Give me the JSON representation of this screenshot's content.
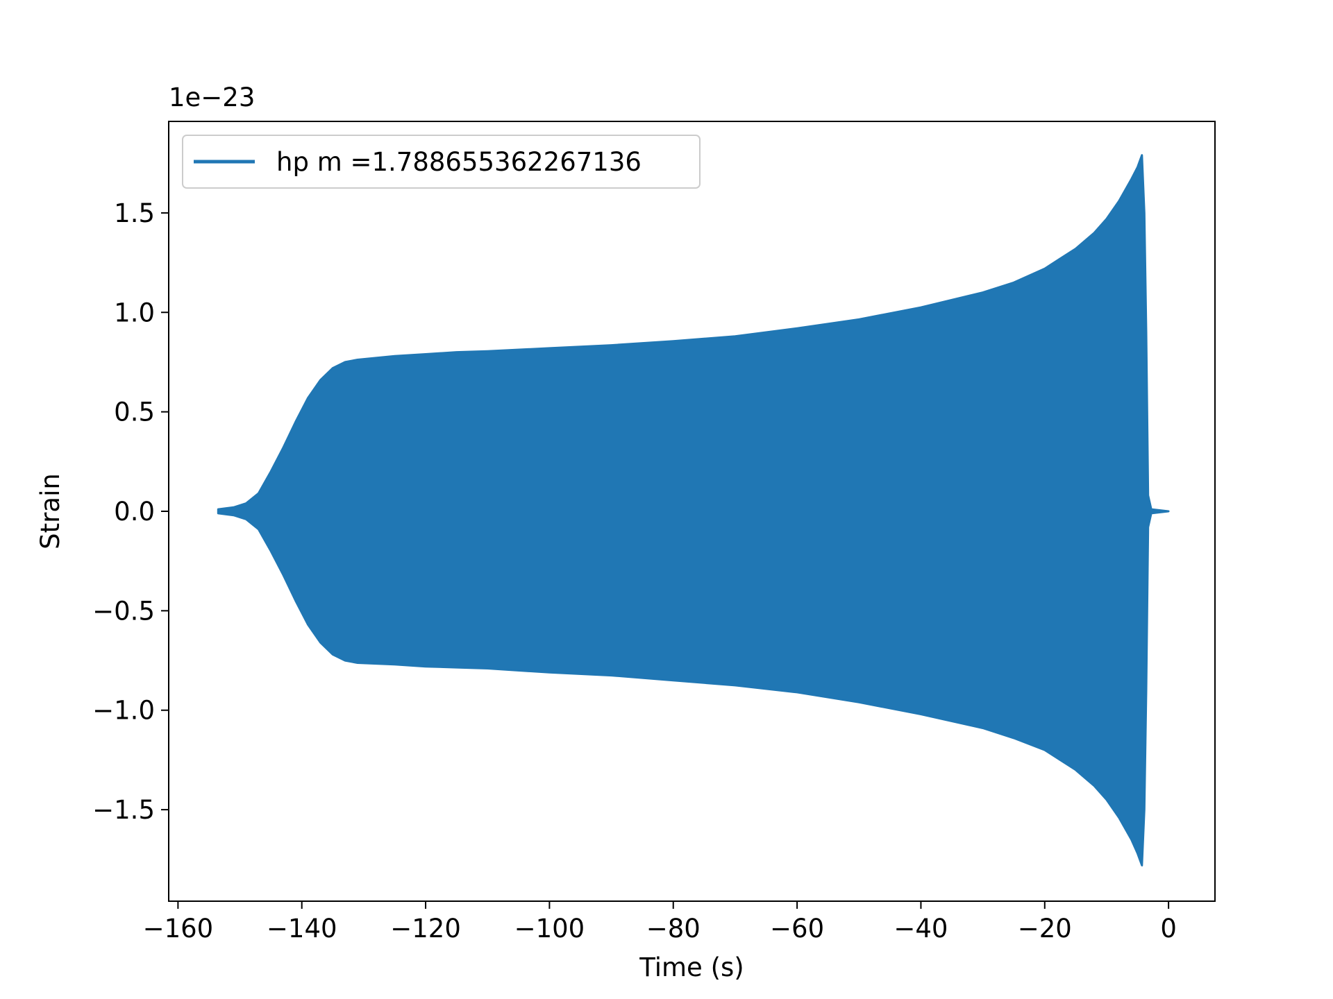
{
  "chart_data": {
    "type": "line",
    "xlabel": "Time (s)",
    "ylabel": "Strain",
    "y_offset_text": "1e−23",
    "xlim": [
      -161.5,
      7.5
    ],
    "ylim": [
      -1.96,
      1.96
    ],
    "x_ticks": [
      -160,
      -140,
      -120,
      -100,
      -80,
      -60,
      -40,
      -20,
      0
    ],
    "x_tick_labels": [
      "−160",
      "−140",
      "−120",
      "−100",
      "−80",
      "−60",
      "−40",
      "−20",
      "0"
    ],
    "y_ticks": [
      1.5,
      1.0,
      0.5,
      0.0,
      -0.5,
      -1.0,
      -1.5
    ],
    "y_tick_labels": [
      "1.5",
      "1.0",
      "0.5",
      "0.0",
      "−0.5",
      "−1.0",
      "−1.5"
    ],
    "legend": {
      "placement": "top-left",
      "entries": [
        "hp m =1.788655362267136"
      ]
    },
    "grid": false,
    "series": [
      {
        "name": "hp m =1.788655362267136",
        "color": "#2077b4",
        "envelope_upper": [
          [
            -153.5,
            0.01
          ],
          [
            -151,
            0.02
          ],
          [
            -149,
            0.04
          ],
          [
            -147,
            0.09
          ],
          [
            -145,
            0.2
          ],
          [
            -143,
            0.32
          ],
          [
            -141,
            0.45
          ],
          [
            -139,
            0.57
          ],
          [
            -137,
            0.66
          ],
          [
            -135,
            0.72
          ],
          [
            -133,
            0.75
          ],
          [
            -131,
            0.762
          ],
          [
            -125,
            0.78
          ],
          [
            -120,
            0.79
          ],
          [
            -115,
            0.8
          ],
          [
            -110,
            0.805
          ],
          [
            -100,
            0.82
          ],
          [
            -90,
            0.835
          ],
          [
            -80,
            0.855
          ],
          [
            -70,
            0.88
          ],
          [
            -60,
            0.92
          ],
          [
            -50,
            0.965
          ],
          [
            -40,
            1.025
          ],
          [
            -30,
            1.1
          ],
          [
            -25,
            1.15
          ],
          [
            -20,
            1.22
          ],
          [
            -15,
            1.32
          ],
          [
            -12,
            1.4
          ],
          [
            -10,
            1.47
          ],
          [
            -8,
            1.56
          ],
          [
            -6,
            1.67
          ],
          [
            -5,
            1.73
          ],
          [
            -4.3,
            1.79
          ],
          [
            -3.9,
            1.5
          ],
          [
            -3.6,
            0.9
          ],
          [
            -3.3,
            0.08
          ],
          [
            -2.8,
            0.01
          ],
          [
            0,
            0.0
          ]
        ],
        "envelope_lower": [
          [
            -153.5,
            -0.01
          ],
          [
            -151,
            -0.02
          ],
          [
            -149,
            -0.04
          ],
          [
            -147,
            -0.09
          ],
          [
            -145,
            -0.2
          ],
          [
            -143,
            -0.32
          ],
          [
            -141,
            -0.45
          ],
          [
            -139,
            -0.57
          ],
          [
            -137,
            -0.66
          ],
          [
            -135,
            -0.72
          ],
          [
            -133,
            -0.75
          ],
          [
            -131,
            -0.762
          ],
          [
            -125,
            -0.77
          ],
          [
            -120,
            -0.78
          ],
          [
            -115,
            -0.785
          ],
          [
            -110,
            -0.79
          ],
          [
            -100,
            -0.81
          ],
          [
            -90,
            -0.825
          ],
          [
            -80,
            -0.85
          ],
          [
            -70,
            -0.875
          ],
          [
            -60,
            -0.91
          ],
          [
            -50,
            -0.96
          ],
          [
            -40,
            -1.02
          ],
          [
            -30,
            -1.09
          ],
          [
            -25,
            -1.14
          ],
          [
            -20,
            -1.2
          ],
          [
            -15,
            -1.3
          ],
          [
            -12,
            -1.38
          ],
          [
            -10,
            -1.45
          ],
          [
            -8,
            -1.54
          ],
          [
            -6,
            -1.65
          ],
          [
            -5,
            -1.72
          ],
          [
            -4.3,
            -1.78
          ],
          [
            -3.9,
            -1.5
          ],
          [
            -3.6,
            -0.9
          ],
          [
            -3.3,
            -0.08
          ],
          [
            -2.8,
            -0.01
          ],
          [
            0,
            0.0
          ]
        ]
      }
    ]
  }
}
